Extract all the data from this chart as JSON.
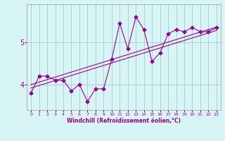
{
  "xlabel": "Windchill (Refroidissement éolien,°C)",
  "bg_color": "#d8f5f5",
  "line_color": "#990099",
  "grid_color": "#aacccc",
  "x_hours": [
    0,
    1,
    2,
    3,
    4,
    5,
    6,
    7,
    8,
    9,
    10,
    11,
    12,
    13,
    14,
    15,
    16,
    17,
    18,
    19,
    20,
    21,
    22,
    23
  ],
  "y_values": [
    3.8,
    4.2,
    4.2,
    4.1,
    4.1,
    3.85,
    4.0,
    3.6,
    3.9,
    3.9,
    4.6,
    5.45,
    4.85,
    5.6,
    5.3,
    4.55,
    4.75,
    5.2,
    5.3,
    5.25,
    5.35,
    5.25,
    5.25,
    5.35
  ],
  "trend_y_start": 3.92,
  "trend_y_end": 5.28,
  "trend2_y_start": 4.0,
  "trend2_y_end": 5.36,
  "ylim": [
    3.4,
    5.9
  ],
  "yticks": [
    4,
    5
  ],
  "xlim": [
    -0.5,
    23.5
  ]
}
